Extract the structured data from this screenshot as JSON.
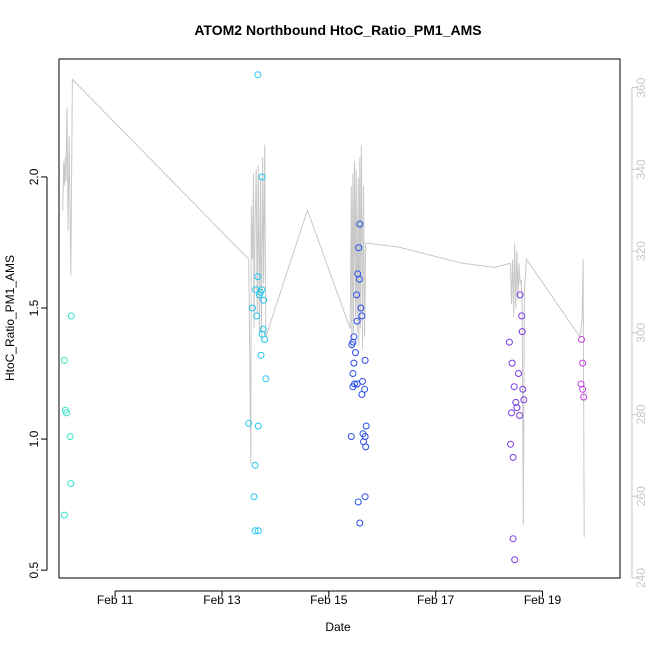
{
  "chart_data": {
    "type": "scatter",
    "title": "ATOM2 Northbound HtoC_Ratio_PM1_AMS",
    "xlabel": "Date",
    "ylabel": "HtoC_Ratio_PM1_AMS",
    "x_unit": "days in February",
    "xlim": [
      9.95,
      20.45
    ],
    "ylim": [
      0.47,
      2.45
    ],
    "y2lim": [
      240,
      367
    ],
    "x_ticks": [
      {
        "label": "Feb 11",
        "value": 11
      },
      {
        "label": "Feb 13",
        "value": 13
      },
      {
        "label": "Feb 15",
        "value": 15
      },
      {
        "label": "Feb 17",
        "value": 17
      },
      {
        "label": "Feb 19",
        "value": 19
      }
    ],
    "y_ticks": [
      {
        "label": "0.5",
        "value": 0.5
      },
      {
        "label": "1.0",
        "value": 1.0
      },
      {
        "label": "1.5",
        "value": 1.5
      },
      {
        "label": "2.0",
        "value": 2.0
      }
    ],
    "y2_ticks": [
      {
        "label": "240",
        "value": 240
      },
      {
        "label": "260",
        "value": 260
      },
      {
        "label": "280",
        "value": 280
      },
      {
        "label": "300",
        "value": 300
      },
      {
        "label": "320",
        "value": 320
      },
      {
        "label": "340",
        "value": 340
      },
      {
        "label": "360",
        "value": 360
      }
    ],
    "grid": false,
    "colors": {
      "line": "#c8c8c8",
      "axis_left": "#000000",
      "axis_right": "#c8c8c8"
    },
    "series": [
      {
        "color": "#33e8c6",
        "points": [
          [
            10.05,
            1.3
          ],
          [
            10.07,
            1.11
          ],
          [
            10.09,
            1.1
          ],
          [
            10.16,
            1.01
          ],
          [
            10.18,
            1.47
          ],
          [
            10.17,
            0.83
          ],
          [
            10.05,
            0.71
          ]
        ]
      },
      {
        "color": "#22c6ec",
        "points": [
          [
            13.67,
            2.39
          ],
          [
            13.75,
            2.0
          ],
          [
            13.67,
            1.62
          ],
          [
            13.63,
            1.57
          ],
          [
            13.7,
            1.55
          ],
          [
            13.72,
            1.56
          ],
          [
            13.75,
            1.57
          ],
          [
            13.78,
            1.53
          ],
          [
            13.57,
            1.5
          ],
          [
            13.65,
            1.47
          ],
          [
            13.77,
            1.42
          ],
          [
            13.75,
            1.4
          ],
          [
            13.8,
            1.38
          ],
          [
            13.73,
            1.32
          ],
          [
            13.82,
            1.23
          ],
          [
            13.5,
            1.06
          ],
          [
            13.68,
            1.05
          ],
          [
            13.62,
            0.9
          ],
          [
            13.6,
            0.78
          ],
          [
            13.62,
            0.65
          ],
          [
            13.68,
            0.65
          ]
        ]
      },
      {
        "color": "#2a4ee6",
        "points": [
          [
            15.58,
            1.82
          ],
          [
            15.56,
            1.73
          ],
          [
            15.54,
            1.63
          ],
          [
            15.57,
            1.61
          ],
          [
            15.52,
            1.55
          ],
          [
            15.6,
            1.5
          ],
          [
            15.62,
            1.47
          ],
          [
            15.53,
            1.45
          ],
          [
            15.47,
            1.39
          ],
          [
            15.45,
            1.37
          ],
          [
            15.43,
            1.36
          ],
          [
            15.5,
            1.33
          ],
          [
            15.68,
            1.3
          ],
          [
            15.47,
            1.29
          ],
          [
            15.45,
            1.25
          ],
          [
            15.63,
            1.22
          ],
          [
            15.53,
            1.21
          ],
          [
            15.48,
            1.21
          ],
          [
            15.45,
            1.2
          ],
          [
            15.67,
            1.19
          ],
          [
            15.62,
            1.17
          ],
          [
            15.7,
            1.05
          ],
          [
            15.64,
            1.02
          ],
          [
            15.68,
            1.01
          ],
          [
            15.42,
            1.01
          ],
          [
            15.65,
            0.99
          ],
          [
            15.69,
            0.97
          ],
          [
            15.68,
            0.78
          ],
          [
            15.55,
            0.76
          ],
          [
            15.58,
            0.68
          ]
        ]
      },
      {
        "color": "#7a3ae0",
        "points": [
          [
            18.58,
            1.55
          ],
          [
            18.61,
            1.47
          ],
          [
            18.62,
            1.41
          ],
          [
            18.38,
            1.37
          ],
          [
            18.43,
            1.29
          ],
          [
            18.55,
            1.25
          ],
          [
            18.47,
            1.2
          ],
          [
            18.63,
            1.19
          ],
          [
            18.65,
            1.15
          ],
          [
            18.5,
            1.14
          ],
          [
            18.42,
            1.1
          ],
          [
            18.52,
            1.12
          ],
          [
            18.57,
            1.09
          ],
          [
            18.4,
            0.98
          ],
          [
            18.45,
            0.93
          ],
          [
            18.45,
            0.62
          ],
          [
            18.48,
            0.54
          ]
        ]
      },
      {
        "color": "#c43ee0",
        "points": [
          [
            19.73,
            1.38
          ],
          [
            19.75,
            1.29
          ],
          [
            19.72,
            1.21
          ],
          [
            19.75,
            1.19
          ],
          [
            19.77,
            1.16
          ]
        ]
      }
    ],
    "line_y2": [
      [
        10.02,
        330
      ],
      [
        10.04,
        342
      ],
      [
        10.05,
        336
      ],
      [
        10.07,
        343
      ],
      [
        10.08,
        337
      ],
      [
        10.1,
        355
      ],
      [
        10.12,
        325
      ],
      [
        10.14,
        348
      ],
      [
        10.17,
        314
      ],
      [
        10.2,
        362
      ],
      [
        13.5,
        318
      ],
      [
        13.52,
        295
      ],
      [
        13.54,
        268
      ],
      [
        13.55,
        331
      ],
      [
        13.57,
        318
      ],
      [
        13.59,
        339
      ],
      [
        13.6,
        301
      ],
      [
        13.62,
        327
      ],
      [
        13.64,
        340
      ],
      [
        13.66,
        305
      ],
      [
        13.68,
        341
      ],
      [
        13.7,
        300
      ],
      [
        13.72,
        338
      ],
      [
        13.74,
        298
      ],
      [
        13.76,
        343
      ],
      [
        13.78,
        312
      ],
      [
        13.8,
        346
      ],
      [
        13.82,
        299
      ],
      [
        14.6,
        330
      ],
      [
        15.4,
        301
      ],
      [
        15.42,
        336
      ],
      [
        15.43,
        296
      ],
      [
        15.45,
        339
      ],
      [
        15.46,
        300
      ],
      [
        15.48,
        342
      ],
      [
        15.5,
        304
      ],
      [
        15.51,
        340
      ],
      [
        15.53,
        300
      ],
      [
        15.55,
        338
      ],
      [
        15.56,
        297
      ],
      [
        15.58,
        343
      ],
      [
        15.59,
        301
      ],
      [
        15.61,
        346
      ],
      [
        15.63,
        296
      ],
      [
        15.65,
        336
      ],
      [
        15.67,
        299
      ],
      [
        15.69,
        322
      ],
      [
        16.3,
        321
      ],
      [
        17.5,
        317
      ],
      [
        18.1,
        316
      ],
      [
        18.4,
        317
      ],
      [
        18.42,
        307
      ],
      [
        18.44,
        318
      ],
      [
        18.46,
        304
      ],
      [
        18.48,
        322
      ],
      [
        18.5,
        306
      ],
      [
        18.52,
        320
      ],
      [
        18.54,
        308
      ],
      [
        18.56,
        317
      ],
      [
        18.58,
        312
      ],
      [
        18.6,
        313
      ],
      [
        18.62,
        306
      ],
      [
        18.64,
        253
      ],
      [
        18.66,
        310
      ],
      [
        18.7,
        318
      ],
      [
        19.7,
        299
      ],
      [
        19.72,
        301
      ],
      [
        19.74,
        303
      ],
      [
        19.76,
        318
      ],
      [
        19.78,
        250
      ]
    ]
  }
}
